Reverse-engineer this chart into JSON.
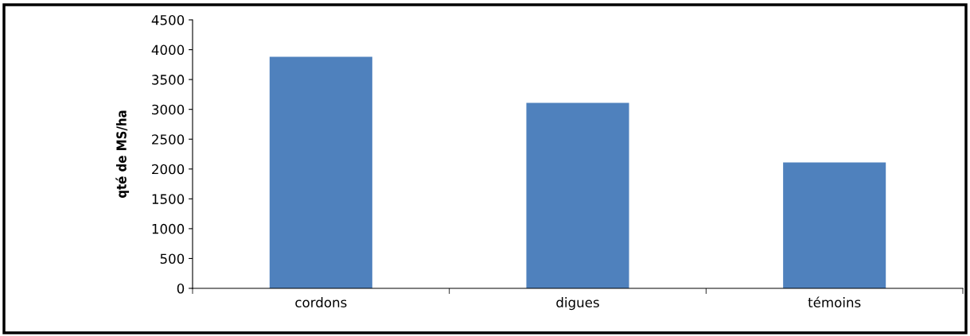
{
  "chart_data": {
    "type": "bar",
    "ylabel": "qté de MS/ha",
    "categories": [
      "cordons",
      "digues",
      "témoins"
    ],
    "values": [
      3880,
      3110,
      2110
    ],
    "color": "#4f81bd",
    "ylim": [
      0,
      4500
    ],
    "yticks": [
      0,
      500,
      1000,
      1500,
      2000,
      2500,
      3000,
      3500,
      4000,
      4500
    ],
    "grid": false,
    "legend": false
  }
}
